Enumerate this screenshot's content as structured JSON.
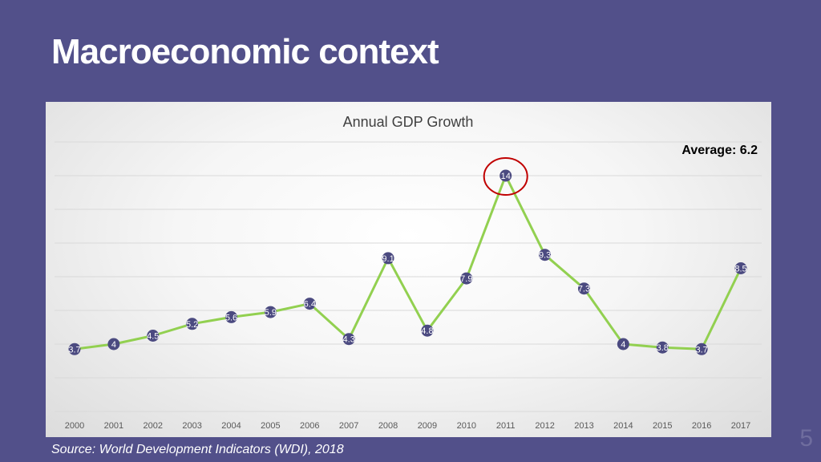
{
  "slide": {
    "title": "Macroeconomic context",
    "source": "Source: World Development Indicators (WDI), 2018",
    "page_number": "5"
  },
  "colors": {
    "background": "#52508a",
    "line": "#92d050",
    "marker": "#4b4a80",
    "highlight": "#c00000"
  },
  "chart_data": {
    "type": "line",
    "title": "Annual GDP Growth",
    "annotation": "Average: 6.2",
    "highlight_category": "2011",
    "categories": [
      "2000",
      "2001",
      "2002",
      "2003",
      "2004",
      "2005",
      "2006",
      "2007",
      "2008",
      "2009",
      "2010",
      "2011",
      "2012",
      "2013",
      "2014",
      "2015",
      "2016",
      "2017"
    ],
    "series": [
      {
        "values": [
          3.7,
          4,
          4.5,
          5.2,
          5.6,
          5.9,
          6.4,
          4.3,
          9.1,
          4.8,
          7.9,
          14,
          9.3,
          7.3,
          4,
          3.8,
          3.7,
          8.5
        ]
      }
    ],
    "xlabel": "",
    "ylabel": "",
    "ylim": [
      0,
      16
    ],
    "grid": true,
    "y_ticks_visible": false
  }
}
